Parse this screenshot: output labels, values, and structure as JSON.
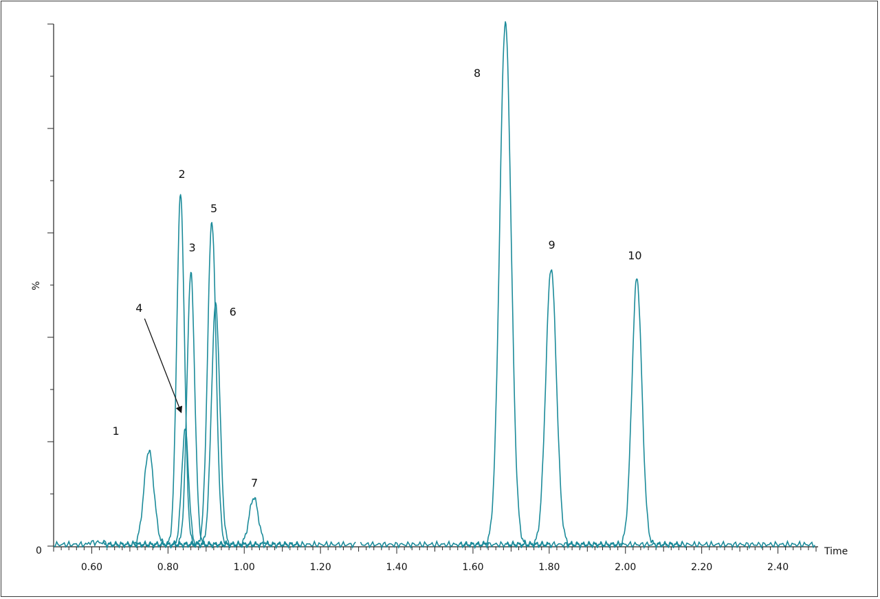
{
  "chart_data": {
    "type": "line",
    "title": "",
    "xlabel": "Time",
    "ylabel": "%",
    "xlim": [
      0.5,
      2.5
    ],
    "ylim": [
      0,
      100
    ],
    "x_ticks": [
      "0.60",
      "0.80",
      "1.00",
      "1.20",
      "1.40",
      "1.60",
      "1.80",
      "2.00",
      "2.20",
      "2.40"
    ],
    "y_tick_labels": [
      "0",
      "%"
    ],
    "line_color": "#1a8a99",
    "baseline_gap": [
      1.295,
      1.305
    ],
    "peaks": [
      {
        "label": "1",
        "time": 0.75,
        "height": 18,
        "width": 0.013
      },
      {
        "label": "2",
        "time": 0.833,
        "height": 67,
        "width": 0.01
      },
      {
        "label": "3",
        "time": 0.86,
        "height": 52,
        "width": 0.01
      },
      {
        "label": "4",
        "time": 0.845,
        "height": 22,
        "width": 0.009
      },
      {
        "label": "5",
        "time": 0.915,
        "height": 62,
        "width": 0.011
      },
      {
        "label": "6",
        "time": 0.925,
        "height": 46,
        "width": 0.011
      },
      {
        "label": "7",
        "time": 1.025,
        "height": 9,
        "width": 0.012
      },
      {
        "label": "8",
        "time": 1.685,
        "height": 100,
        "width": 0.015
      },
      {
        "label": "9",
        "time": 1.805,
        "height": 53,
        "width": 0.014
      },
      {
        "label": "10",
        "time": 2.03,
        "height": 51,
        "width": 0.013
      }
    ],
    "annotations": [
      {
        "text": "4",
        "points_to_peak": "4"
      }
    ]
  }
}
